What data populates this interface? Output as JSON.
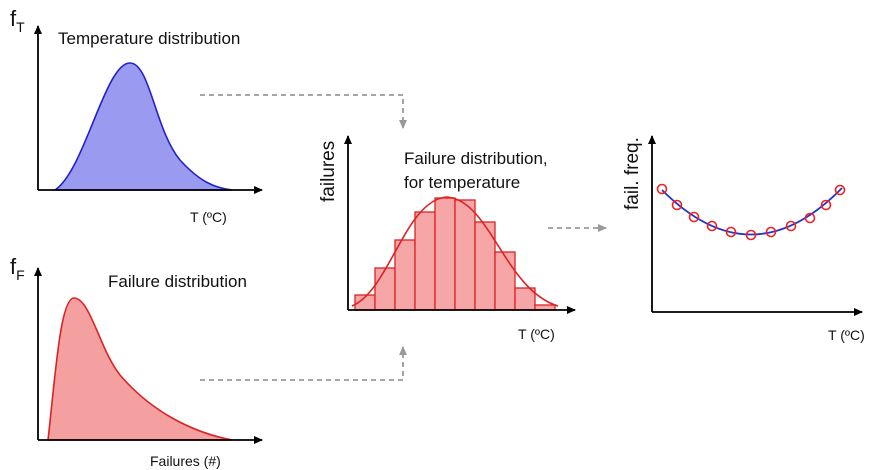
{
  "panels": [
    {
      "axis_label": "f",
      "axis_subscript": "T",
      "title": "Temperature distribution",
      "x_label": "T (ºC)"
    },
    {
      "axis_label": "f",
      "axis_subscript": "F",
      "title": "Failure distribution",
      "x_label": "Failures (#)"
    },
    {
      "axis_label": "failures",
      "title_lines": [
        "Failure distribution,",
        "for temperature"
      ],
      "x_label": "T (ºC)"
    },
    {
      "axis_label": "fail. freq.",
      "x_label": "T (ºC)"
    }
  ]
}
